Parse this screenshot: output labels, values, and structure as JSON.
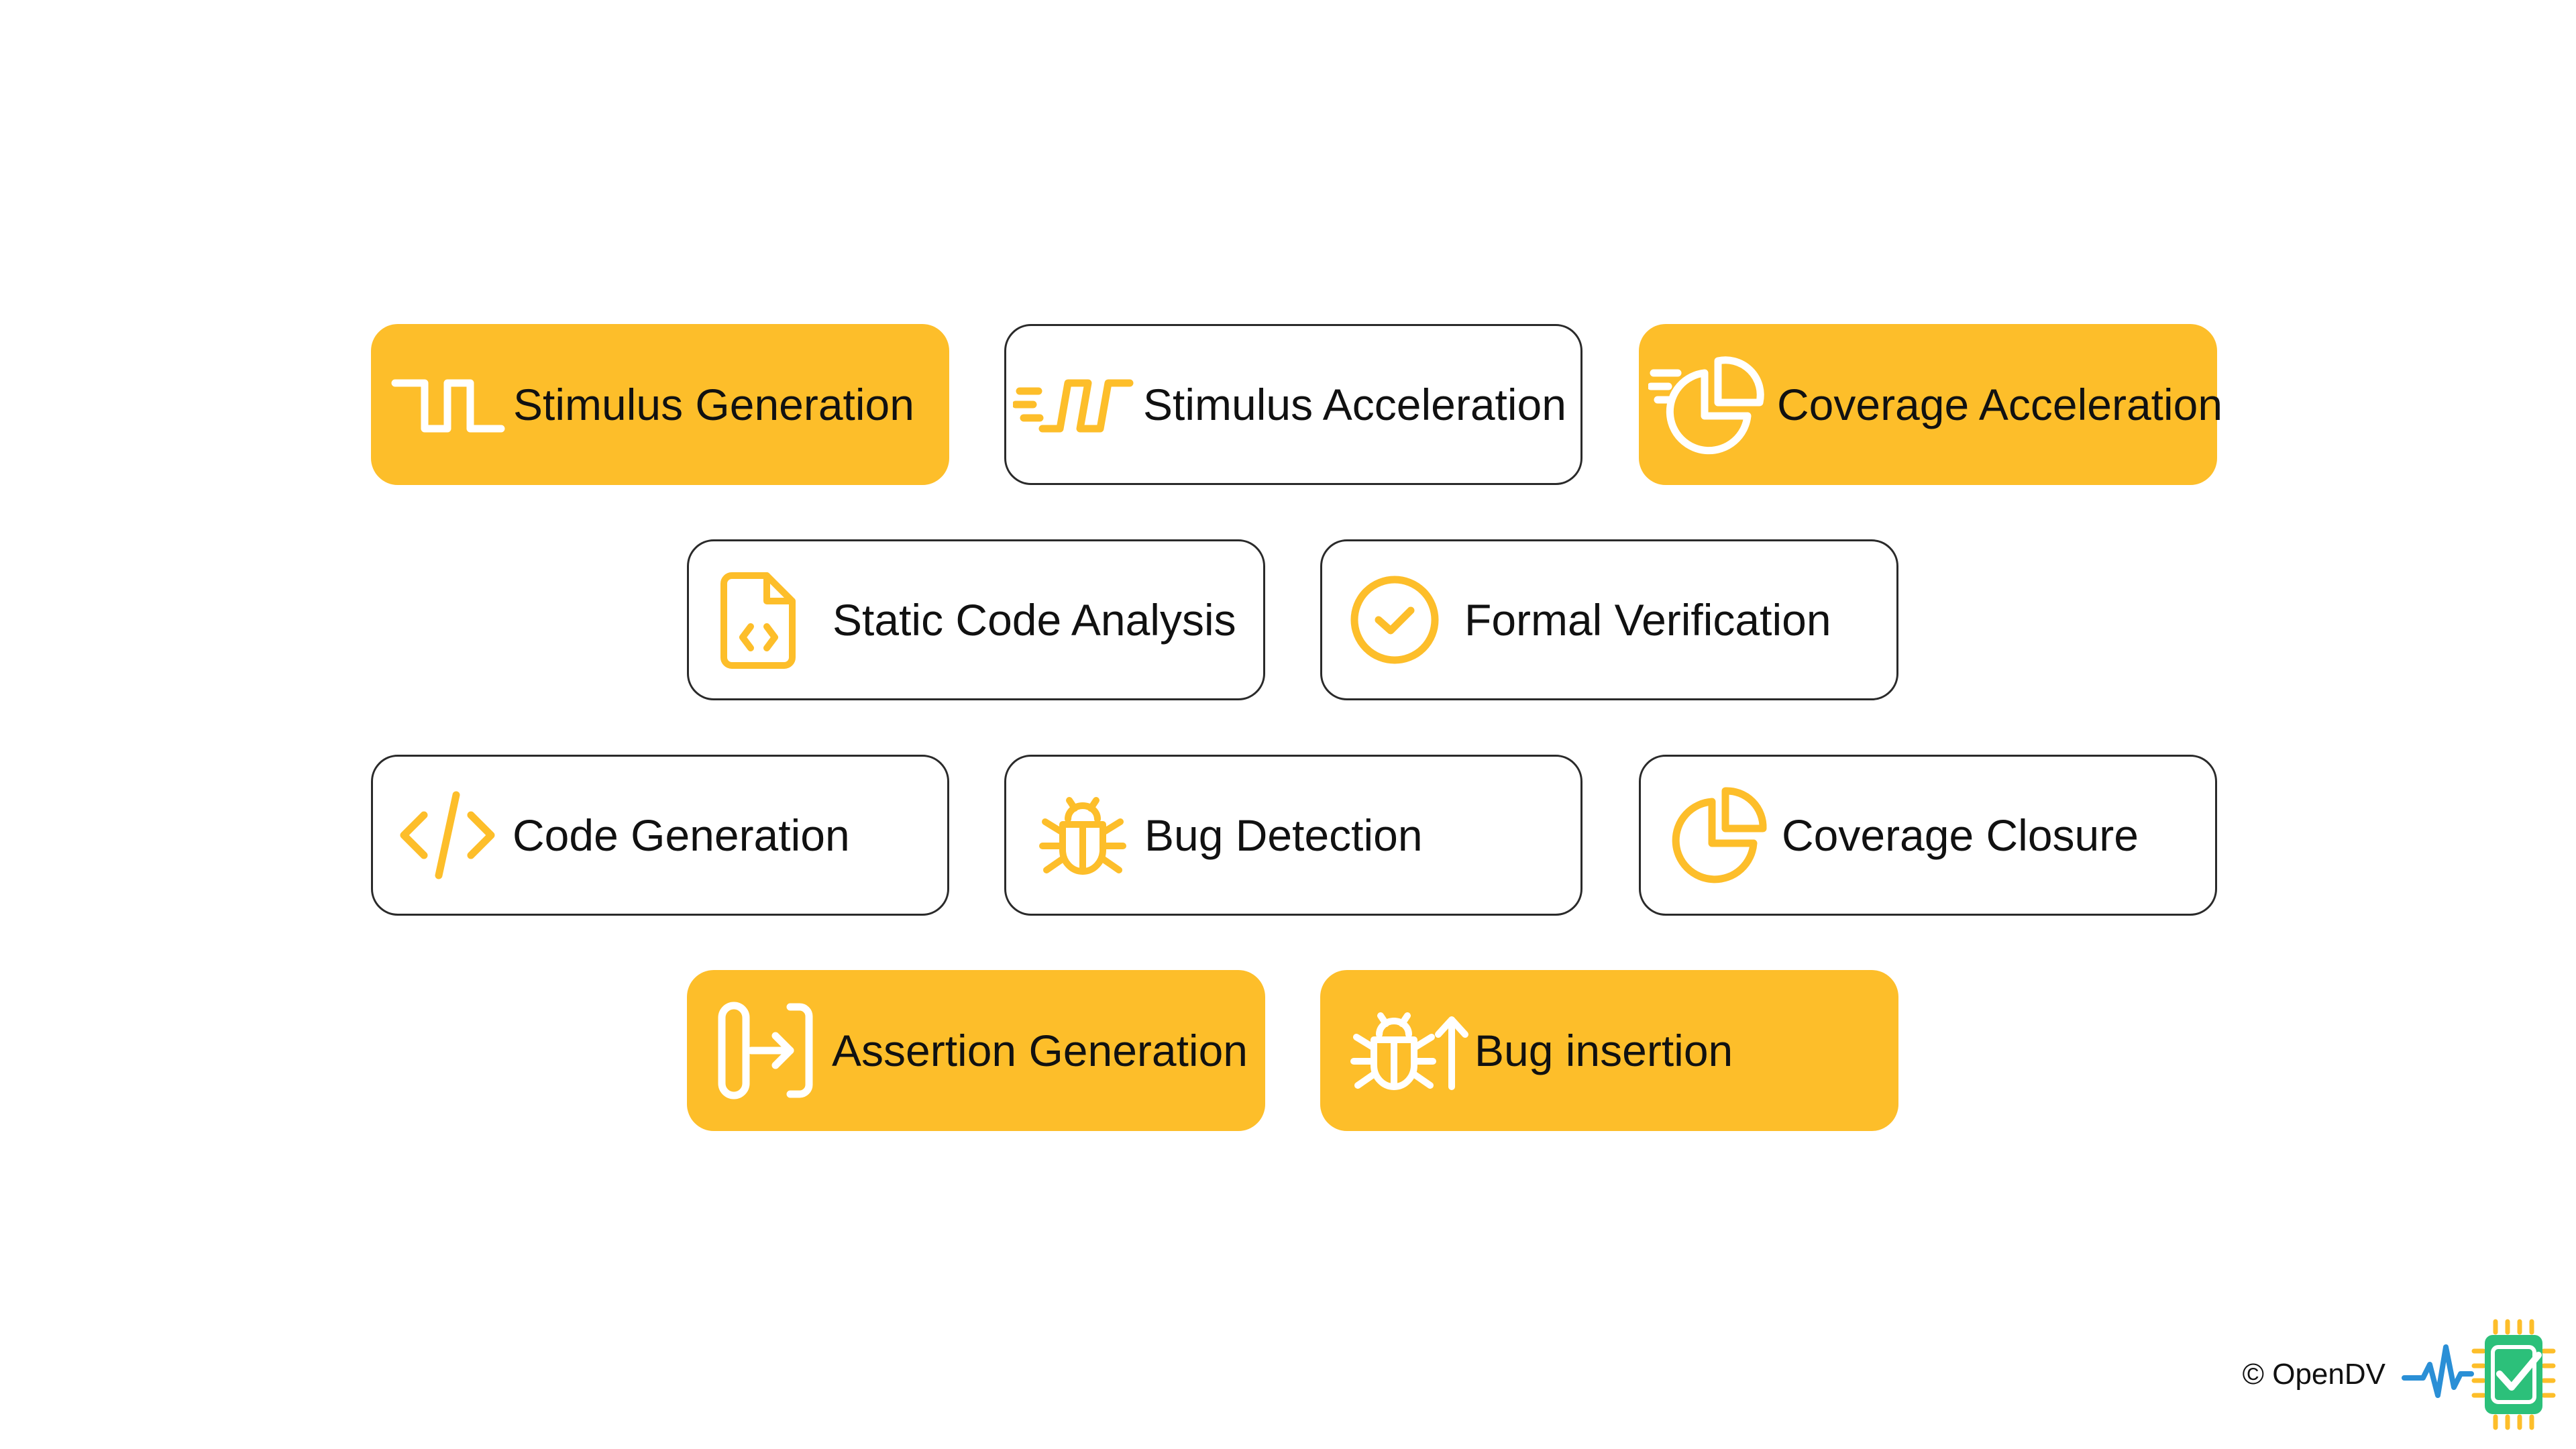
{
  "colors": {
    "accent": "#FDBE2A",
    "text": "#111111",
    "border": "#2a2a2a",
    "logo_green": "#2CC07A",
    "logo_blue": "#2A8FD6"
  },
  "cards": [
    {
      "label": "Stimulus Generation",
      "icon": "square-wave-icon",
      "style": "filled"
    },
    {
      "label": "Stimulus Acceleration",
      "icon": "fast-square-wave-icon",
      "style": "outlined"
    },
    {
      "label": "Coverage Acceleration",
      "icon": "fast-pie-chart-icon",
      "style": "filled"
    },
    {
      "label": "Static Code Analysis",
      "icon": "code-file-icon",
      "style": "outlined"
    },
    {
      "label": "Formal Verification",
      "icon": "check-circle-icon",
      "style": "outlined"
    },
    {
      "label": "Code Generation",
      "icon": "code-brackets-icon",
      "style": "outlined"
    },
    {
      "label": "Bug Detection",
      "icon": "bug-icon",
      "style": "outlined"
    },
    {
      "label": "Coverage Closure",
      "icon": "pie-chart-icon",
      "style": "outlined"
    },
    {
      "label": "Assertion Generation",
      "icon": "arrow-into-bracket-icon",
      "style": "filled"
    },
    {
      "label": "Bug insertion",
      "icon": "bug-arrow-up-icon",
      "style": "filled"
    }
  ],
  "footer": {
    "copyright": "© OpenDV",
    "logo": "opendv-chip-check-logo"
  }
}
